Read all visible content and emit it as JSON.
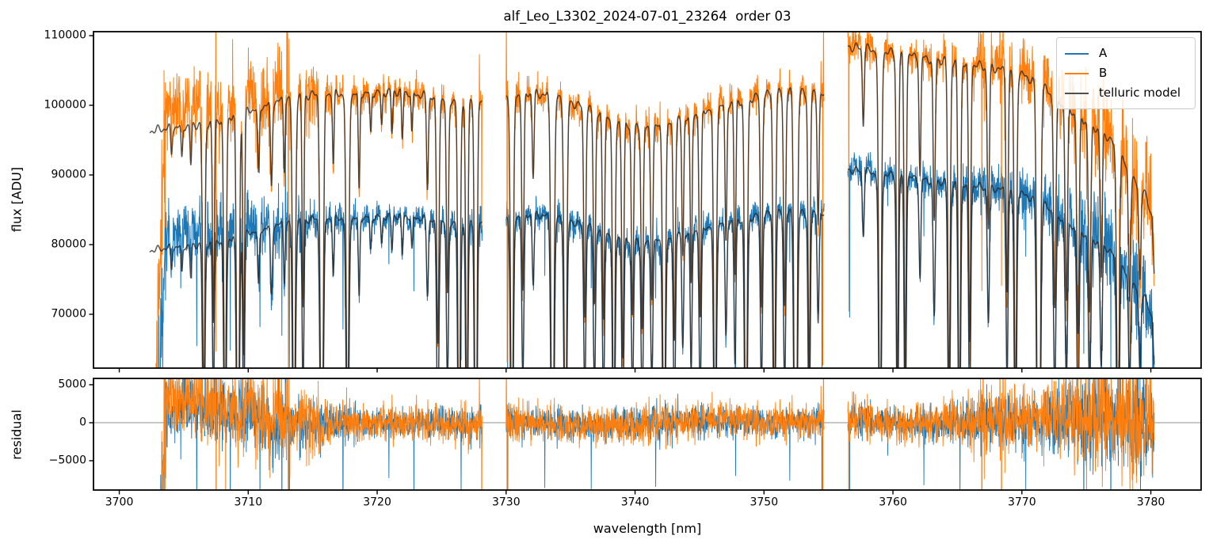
{
  "chart_data": {
    "type": "line",
    "title": "alf_Leo_L3302_2024-07-01_23264  order 03",
    "xlabel": "wavelength [nm]",
    "x_axis": {
      "lim": [
        3698.0,
        3783.9
      ],
      "ticks": [
        {
          "v": 3700,
          "label": "3700"
        },
        {
          "v": 3710,
          "label": "3710"
        },
        {
          "v": 3720,
          "label": "3720"
        },
        {
          "v": 3730,
          "label": "3730"
        },
        {
          "v": 3740,
          "label": "3740"
        },
        {
          "v": 3750,
          "label": "3750"
        },
        {
          "v": 3760,
          "label": "3760"
        },
        {
          "v": 3770,
          "label": "3770"
        },
        {
          "v": 3780,
          "label": "3780"
        }
      ]
    },
    "panels": {
      "flux": {
        "ylabel": "flux [ADU]",
        "ylim": [
          62270,
          110570
        ],
        "ticks": [
          {
            "v": 70000,
            "label": "70000"
          },
          {
            "v": 80000,
            "label": "80000"
          },
          {
            "v": 90000,
            "label": "90000"
          },
          {
            "v": 100000,
            "label": "100000"
          },
          {
            "v": 110000,
            "label": "110000"
          }
        ]
      },
      "residual": {
        "ylabel": "residual",
        "ylim": [
          -8860,
          5830
        ],
        "ticks": [
          {
            "v": -5000,
            "label": "−5000"
          },
          {
            "v": 0,
            "label": "0"
          },
          {
            "v": 5000,
            "label": "5000"
          }
        ],
        "zero_line_color": "#808080"
      }
    },
    "legend": [
      {
        "label": "A",
        "color": "#1f77b4"
      },
      {
        "label": "B",
        "color": "#ff7f0e"
      },
      {
        "label": "telluric model",
        "color": "#4f4f4f"
      }
    ],
    "colors": {
      "A": "#1f77b4",
      "B": "#ff7f0e",
      "model": "rgba(38,38,38,0.78)"
    },
    "segments": [
      [
        3702.35,
        3728.15
      ],
      [
        3730.0,
        3754.65
      ],
      [
        3756.5,
        3780.25
      ]
    ],
    "sample_step_nm": 0.02,
    "continuum_B": [
      [
        3702.3,
        96300
      ],
      [
        3704.0,
        96800
      ],
      [
        3706.0,
        97200
      ],
      [
        3708.0,
        98000
      ],
      [
        3710.0,
        99200
      ],
      [
        3712.0,
        100400
      ],
      [
        3714.0,
        101300
      ],
      [
        3716.0,
        101700
      ],
      [
        3718.0,
        101600
      ],
      [
        3720.0,
        101900
      ],
      [
        3722.0,
        102000
      ],
      [
        3724.0,
        101200
      ],
      [
        3726.0,
        100700
      ],
      [
        3728.2,
        100400
      ],
      [
        3730.0,
        101400
      ],
      [
        3732.0,
        101800
      ],
      [
        3734.0,
        101100
      ],
      [
        3736.0,
        99700
      ],
      [
        3738.0,
        98300
      ],
      [
        3740.0,
        96900
      ],
      [
        3741.0,
        96600
      ],
      [
        3742.5,
        97200
      ],
      [
        3744.0,
        98300
      ],
      [
        3746.0,
        99600
      ],
      [
        3748.0,
        100600
      ],
      [
        3750.0,
        101500
      ],
      [
        3752.0,
        101900
      ],
      [
        3754.0,
        101600
      ],
      [
        3754.7,
        101300
      ],
      [
        3756.5,
        108400
      ],
      [
        3758.0,
        108100
      ],
      [
        3760.0,
        107500
      ],
      [
        3762.0,
        106900
      ],
      [
        3764.0,
        106400
      ],
      [
        3766.0,
        105900
      ],
      [
        3768.0,
        105300
      ],
      [
        3770.0,
        104400
      ],
      [
        3771.5,
        102900
      ],
      [
        3773.0,
        100300
      ],
      [
        3775.0,
        97700
      ],
      [
        3776.5,
        95800
      ],
      [
        3777.5,
        93500
      ],
      [
        3778.5,
        89500
      ],
      [
        3779.5,
        87500
      ],
      [
        3780.1,
        84000
      ],
      [
        3780.3,
        74000
      ]
    ],
    "ratio_A": [
      [
        3702.3,
        0.822
      ],
      [
        3715.0,
        0.824
      ],
      [
        3725.0,
        0.826
      ],
      [
        3735.0,
        0.83
      ],
      [
        3745.0,
        0.831
      ],
      [
        3754.7,
        0.83
      ],
      [
        3756.5,
        0.837
      ],
      [
        3765.0,
        0.836
      ],
      [
        3772.0,
        0.836
      ],
      [
        3780.3,
        0.828
      ]
    ],
    "telluric_lines": [
      [
        3704.05,
        0.04,
        0.06
      ],
      [
        3704.85,
        0.05,
        0.06
      ],
      [
        3705.55,
        0.06,
        0.06
      ],
      [
        3706.55,
        0.42,
        0.09
      ],
      [
        3707.3,
        0.3,
        0.07
      ],
      [
        3708.2,
        0.48,
        0.09
      ],
      [
        3709.2,
        0.6,
        0.1
      ],
      [
        3709.65,
        0.35,
        0.07
      ],
      [
        3710.8,
        0.1,
        0.07
      ],
      [
        3711.8,
        0.12,
        0.07
      ],
      [
        3712.8,
        0.1,
        0.06
      ],
      [
        3713.55,
        0.55,
        0.1
      ],
      [
        3714.25,
        0.3,
        0.07
      ],
      [
        3715.7,
        0.62,
        0.11
      ],
      [
        3716.6,
        0.1,
        0.06
      ],
      [
        3717.7,
        0.5,
        0.1
      ],
      [
        3718.6,
        0.14,
        0.06
      ],
      [
        3719.5,
        0.06,
        0.06
      ],
      [
        3720.35,
        0.05,
        0.06
      ],
      [
        3721.15,
        0.06,
        0.06
      ],
      [
        3721.95,
        0.07,
        0.06
      ],
      [
        3722.7,
        0.06,
        0.06
      ],
      [
        3723.9,
        0.13,
        0.07
      ],
      [
        3724.7,
        0.35,
        0.09
      ],
      [
        3725.45,
        0.28,
        0.08
      ],
      [
        3726.35,
        0.55,
        0.09
      ],
      [
        3726.95,
        0.48,
        0.08
      ],
      [
        3727.65,
        0.65,
        0.09
      ],
      [
        3730.45,
        0.55,
        0.1
      ],
      [
        3731.3,
        0.28,
        0.08
      ],
      [
        3732.1,
        0.12,
        0.07
      ],
      [
        3733.6,
        0.62,
        0.11
      ],
      [
        3734.6,
        0.55,
        0.1
      ],
      [
        3736.1,
        0.3,
        0.08
      ],
      [
        3736.85,
        0.28,
        0.08
      ],
      [
        3737.55,
        0.3,
        0.08
      ],
      [
        3738.35,
        0.5,
        0.09
      ],
      [
        3739.05,
        0.35,
        0.08
      ],
      [
        3739.8,
        0.28,
        0.08
      ],
      [
        3740.55,
        0.3,
        0.08
      ],
      [
        3741.3,
        0.25,
        0.08
      ],
      [
        3742.25,
        0.55,
        0.1
      ],
      [
        3743.05,
        0.32,
        0.08
      ],
      [
        3743.7,
        0.2,
        0.07
      ],
      [
        3744.35,
        0.25,
        0.07
      ],
      [
        3745.05,
        0.3,
        0.08
      ],
      [
        3746.2,
        0.5,
        0.1
      ],
      [
        3747.05,
        0.2,
        0.07
      ],
      [
        3747.75,
        0.25,
        0.07
      ],
      [
        3748.6,
        0.55,
        0.1
      ],
      [
        3749.8,
        0.3,
        0.08
      ],
      [
        3750.8,
        0.48,
        0.09
      ],
      [
        3751.6,
        0.3,
        0.08
      ],
      [
        3752.45,
        0.75,
        0.11
      ],
      [
        3753.5,
        0.4,
        0.08
      ],
      [
        3754.2,
        0.18,
        0.07
      ],
      [
        3757.7,
        0.1,
        0.07
      ],
      [
        3759.0,
        0.55,
        0.1
      ],
      [
        3760.35,
        0.45,
        0.08
      ],
      [
        3760.95,
        0.42,
        0.08
      ],
      [
        3762.1,
        0.16,
        0.07
      ],
      [
        3763.2,
        0.22,
        0.08
      ],
      [
        3764.35,
        0.45,
        0.09
      ],
      [
        3765.15,
        0.5,
        0.09
      ],
      [
        3765.95,
        0.38,
        0.08
      ],
      [
        3767.4,
        0.22,
        0.08
      ],
      [
        3768.85,
        0.3,
        0.08
      ],
      [
        3769.5,
        0.48,
        0.09
      ],
      [
        3771.3,
        0.78,
        0.12
      ],
      [
        3772.55,
        0.3,
        0.09
      ],
      [
        3773.45,
        0.28,
        0.09
      ],
      [
        3774.35,
        0.32,
        0.09
      ],
      [
        3775.25,
        0.28,
        0.09
      ],
      [
        3776.15,
        0.22,
        0.08
      ],
      [
        3777.45,
        0.45,
        0.1
      ],
      [
        3778.35,
        0.2,
        0.08
      ],
      [
        3779.15,
        0.15,
        0.08
      ]
    ],
    "data_offset": [
      [
        3702.4,
        0.015
      ],
      [
        3703.5,
        0.03
      ],
      [
        3705.0,
        0.036
      ],
      [
        3706.5,
        0.032
      ],
      [
        3708.5,
        0.022
      ],
      [
        3710.5,
        0.01
      ],
      [
        3712.5,
        0.003
      ],
      [
        3714.0,
        0.0
      ],
      [
        3739.5,
        -0.005
      ],
      [
        3745.5,
        0.005
      ],
      [
        3750.0,
        0.002
      ],
      [
        3756.6,
        0.003
      ],
      [
        3758.0,
        0.004
      ],
      [
        3761.0,
        -0.003
      ],
      [
        3764.0,
        0.0
      ],
      [
        3773.0,
        0.008
      ],
      [
        3776.0,
        0.012
      ],
      [
        3778.0,
        0.008
      ],
      [
        3780.3,
        0.0
      ]
    ],
    "noise": {
      "seed": 42,
      "start_ramp_nm": 1.3,
      "start_floor": 0.22,
      "sigma": [
        [
          3702.4,
          0.035
        ],
        [
          3704,
          0.028
        ],
        [
          3707,
          0.03
        ],
        [
          3710,
          0.028
        ],
        [
          3713,
          0.026
        ],
        [
          3715,
          0.02
        ],
        [
          3717,
          0.015
        ],
        [
          3719,
          0.011
        ],
        [
          3722,
          0.011
        ],
        [
          3725,
          0.013
        ],
        [
          3728,
          0.014
        ],
        [
          3730,
          0.014
        ],
        [
          3733,
          0.012
        ],
        [
          3736,
          0.012
        ],
        [
          3739,
          0.013
        ],
        [
          3742,
          0.014
        ],
        [
          3745,
          0.012
        ],
        [
          3748,
          0.011
        ],
        [
          3751,
          0.011
        ],
        [
          3754.6,
          0.012
        ],
        [
          3756.6,
          0.013
        ],
        [
          3759,
          0.012
        ],
        [
          3762,
          0.012
        ],
        [
          3765,
          0.015
        ],
        [
          3767,
          0.02
        ],
        [
          3769,
          0.022
        ],
        [
          3771,
          0.02
        ],
        [
          3773,
          0.028
        ],
        [
          3775,
          0.038
        ],
        [
          3777,
          0.042
        ],
        [
          3779,
          0.044
        ],
        [
          3780.3,
          0.045
        ]
      ]
    },
    "spikes": {
      "B": [
        [
          3707.48,
          20000
        ],
        [
          3707.5,
          -42000
        ],
        [
          3712.3,
          9000
        ],
        [
          3712.42,
          6500
        ],
        [
          3712.98,
          14000
        ],
        [
          3713.04,
          26000
        ],
        [
          3713.1,
          -40000
        ],
        [
          3713.18,
          9000
        ],
        [
          3727.92,
          9500
        ],
        [
          3728.1,
          -20000
        ],
        [
          3730.02,
          11000
        ],
        [
          3730.08,
          -40000
        ],
        [
          3754.56,
          -40000
        ],
        [
          3754.62,
          10000
        ],
        [
          3756.52,
          3500
        ],
        [
          3756.58,
          -40000
        ],
        [
          3766.8,
          6000
        ],
        [
          3766.9,
          -34000
        ],
        [
          3767.0,
          17000
        ],
        [
          3767.08,
          -9000
        ],
        [
          3768.3,
          19000
        ],
        [
          3768.42,
          -34000
        ],
        [
          3768.54,
          14000
        ],
        [
          3779.9,
          6000
        ],
        [
          3780.1,
          -12000
        ]
      ],
      "A": [
        [
          3706.0,
          -13000
        ],
        [
          3708.6,
          -15000
        ],
        [
          3710.9,
          -11000
        ],
        [
          3712.6,
          -16000
        ],
        [
          3712.88,
          17000
        ],
        [
          3712.96,
          -8000
        ],
        [
          3713.2,
          -25000
        ],
        [
          3717.35,
          -14000
        ],
        [
          3720.9,
          -8000
        ],
        [
          3722.85,
          -11000
        ],
        [
          3726.5,
          -9000
        ],
        [
          3730.12,
          -30000
        ],
        [
          3733.0,
          -8000
        ],
        [
          3736.6,
          -9000
        ],
        [
          3741.6,
          -7000
        ],
        [
          3747.8,
          -8000
        ],
        [
          3752.0,
          -9000
        ],
        [
          3754.5,
          -24000
        ],
        [
          3756.64,
          -20000
        ],
        [
          3759.6,
          -8000
        ],
        [
          3762.4,
          -7000
        ],
        [
          3765.2,
          -11000
        ],
        [
          3770.3,
          -9000
        ],
        [
          3774.8,
          -12000
        ],
        [
          3776.9,
          -14000
        ],
        [
          3779.2,
          -10000
        ]
      ]
    }
  }
}
